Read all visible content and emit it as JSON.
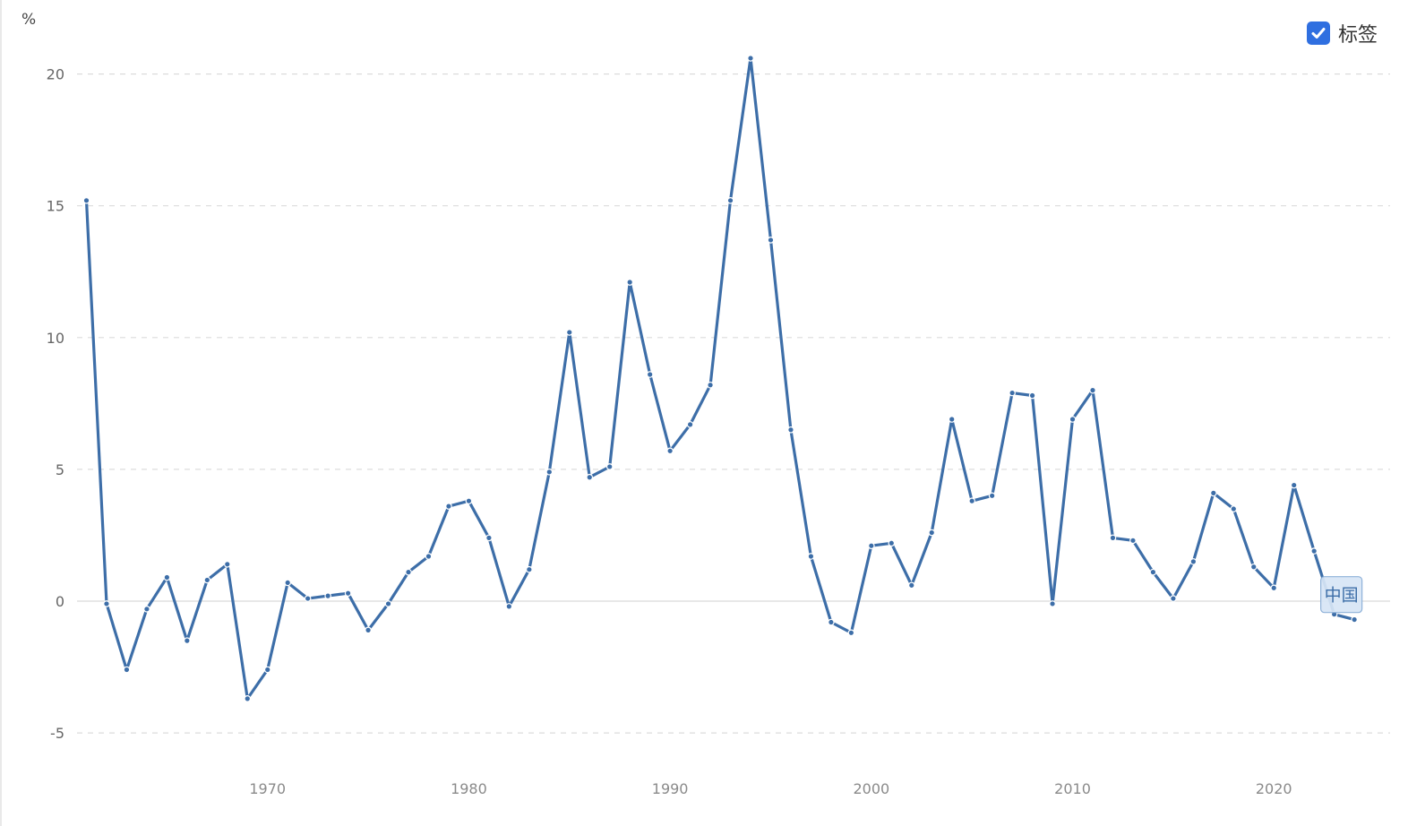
{
  "unit_label": "%",
  "legend": {
    "label": "标签",
    "checked": true,
    "checkbox_color": "#2f6fe0"
  },
  "chart_data": {
    "type": "line",
    "title": "",
    "xlabel": "",
    "ylabel": "%",
    "xlim": [
      1960,
      2024
    ],
    "ylim": [
      -6,
      22
    ],
    "x_ticks": [
      1970,
      1980,
      1990,
      2000,
      2010,
      2020
    ],
    "y_ticks": [
      -5,
      0,
      5,
      10,
      15,
      20
    ],
    "grid": true,
    "legend_position": "top-right",
    "series": [
      {
        "name": "中国",
        "color": "#3d6ea8",
        "end_label": "中国",
        "x": [
          1961,
          1962,
          1963,
          1964,
          1965,
          1966,
          1967,
          1968,
          1969,
          1970,
          1971,
          1972,
          1973,
          1974,
          1975,
          1976,
          1977,
          1978,
          1979,
          1980,
          1981,
          1982,
          1983,
          1984,
          1985,
          1986,
          1987,
          1988,
          1989,
          1990,
          1991,
          1992,
          1993,
          1994,
          1995,
          1996,
          1997,
          1998,
          1999,
          2000,
          2001,
          2002,
          2003,
          2004,
          2005,
          2006,
          2007,
          2008,
          2009,
          2010,
          2011,
          2012,
          2013,
          2014,
          2015,
          2016,
          2017,
          2018,
          2019,
          2020,
          2021,
          2022,
          2023,
          2024
        ],
        "y": [
          15.2,
          -0.1,
          -2.6,
          -0.3,
          0.9,
          -1.5,
          0.8,
          1.4,
          -3.7,
          -2.6,
          0.7,
          0.1,
          0.2,
          0.3,
          -1.1,
          -0.1,
          1.1,
          1.7,
          3.6,
          3.8,
          2.4,
          -0.2,
          1.2,
          4.9,
          10.2,
          4.7,
          5.1,
          12.1,
          8.6,
          5.7,
          6.7,
          8.2,
          15.2,
          20.6,
          13.7,
          6.5,
          1.7,
          -0.8,
          -1.2,
          2.1,
          2.2,
          0.6,
          2.6,
          6.9,
          3.8,
          4.0,
          7.9,
          7.8,
          -0.1,
          6.9,
          8.0,
          2.4,
          2.3,
          1.1,
          0.1,
          1.5,
          4.1,
          3.5,
          1.3,
          0.5,
          4.4,
          1.9,
          -0.5,
          -0.7
        ]
      }
    ]
  }
}
